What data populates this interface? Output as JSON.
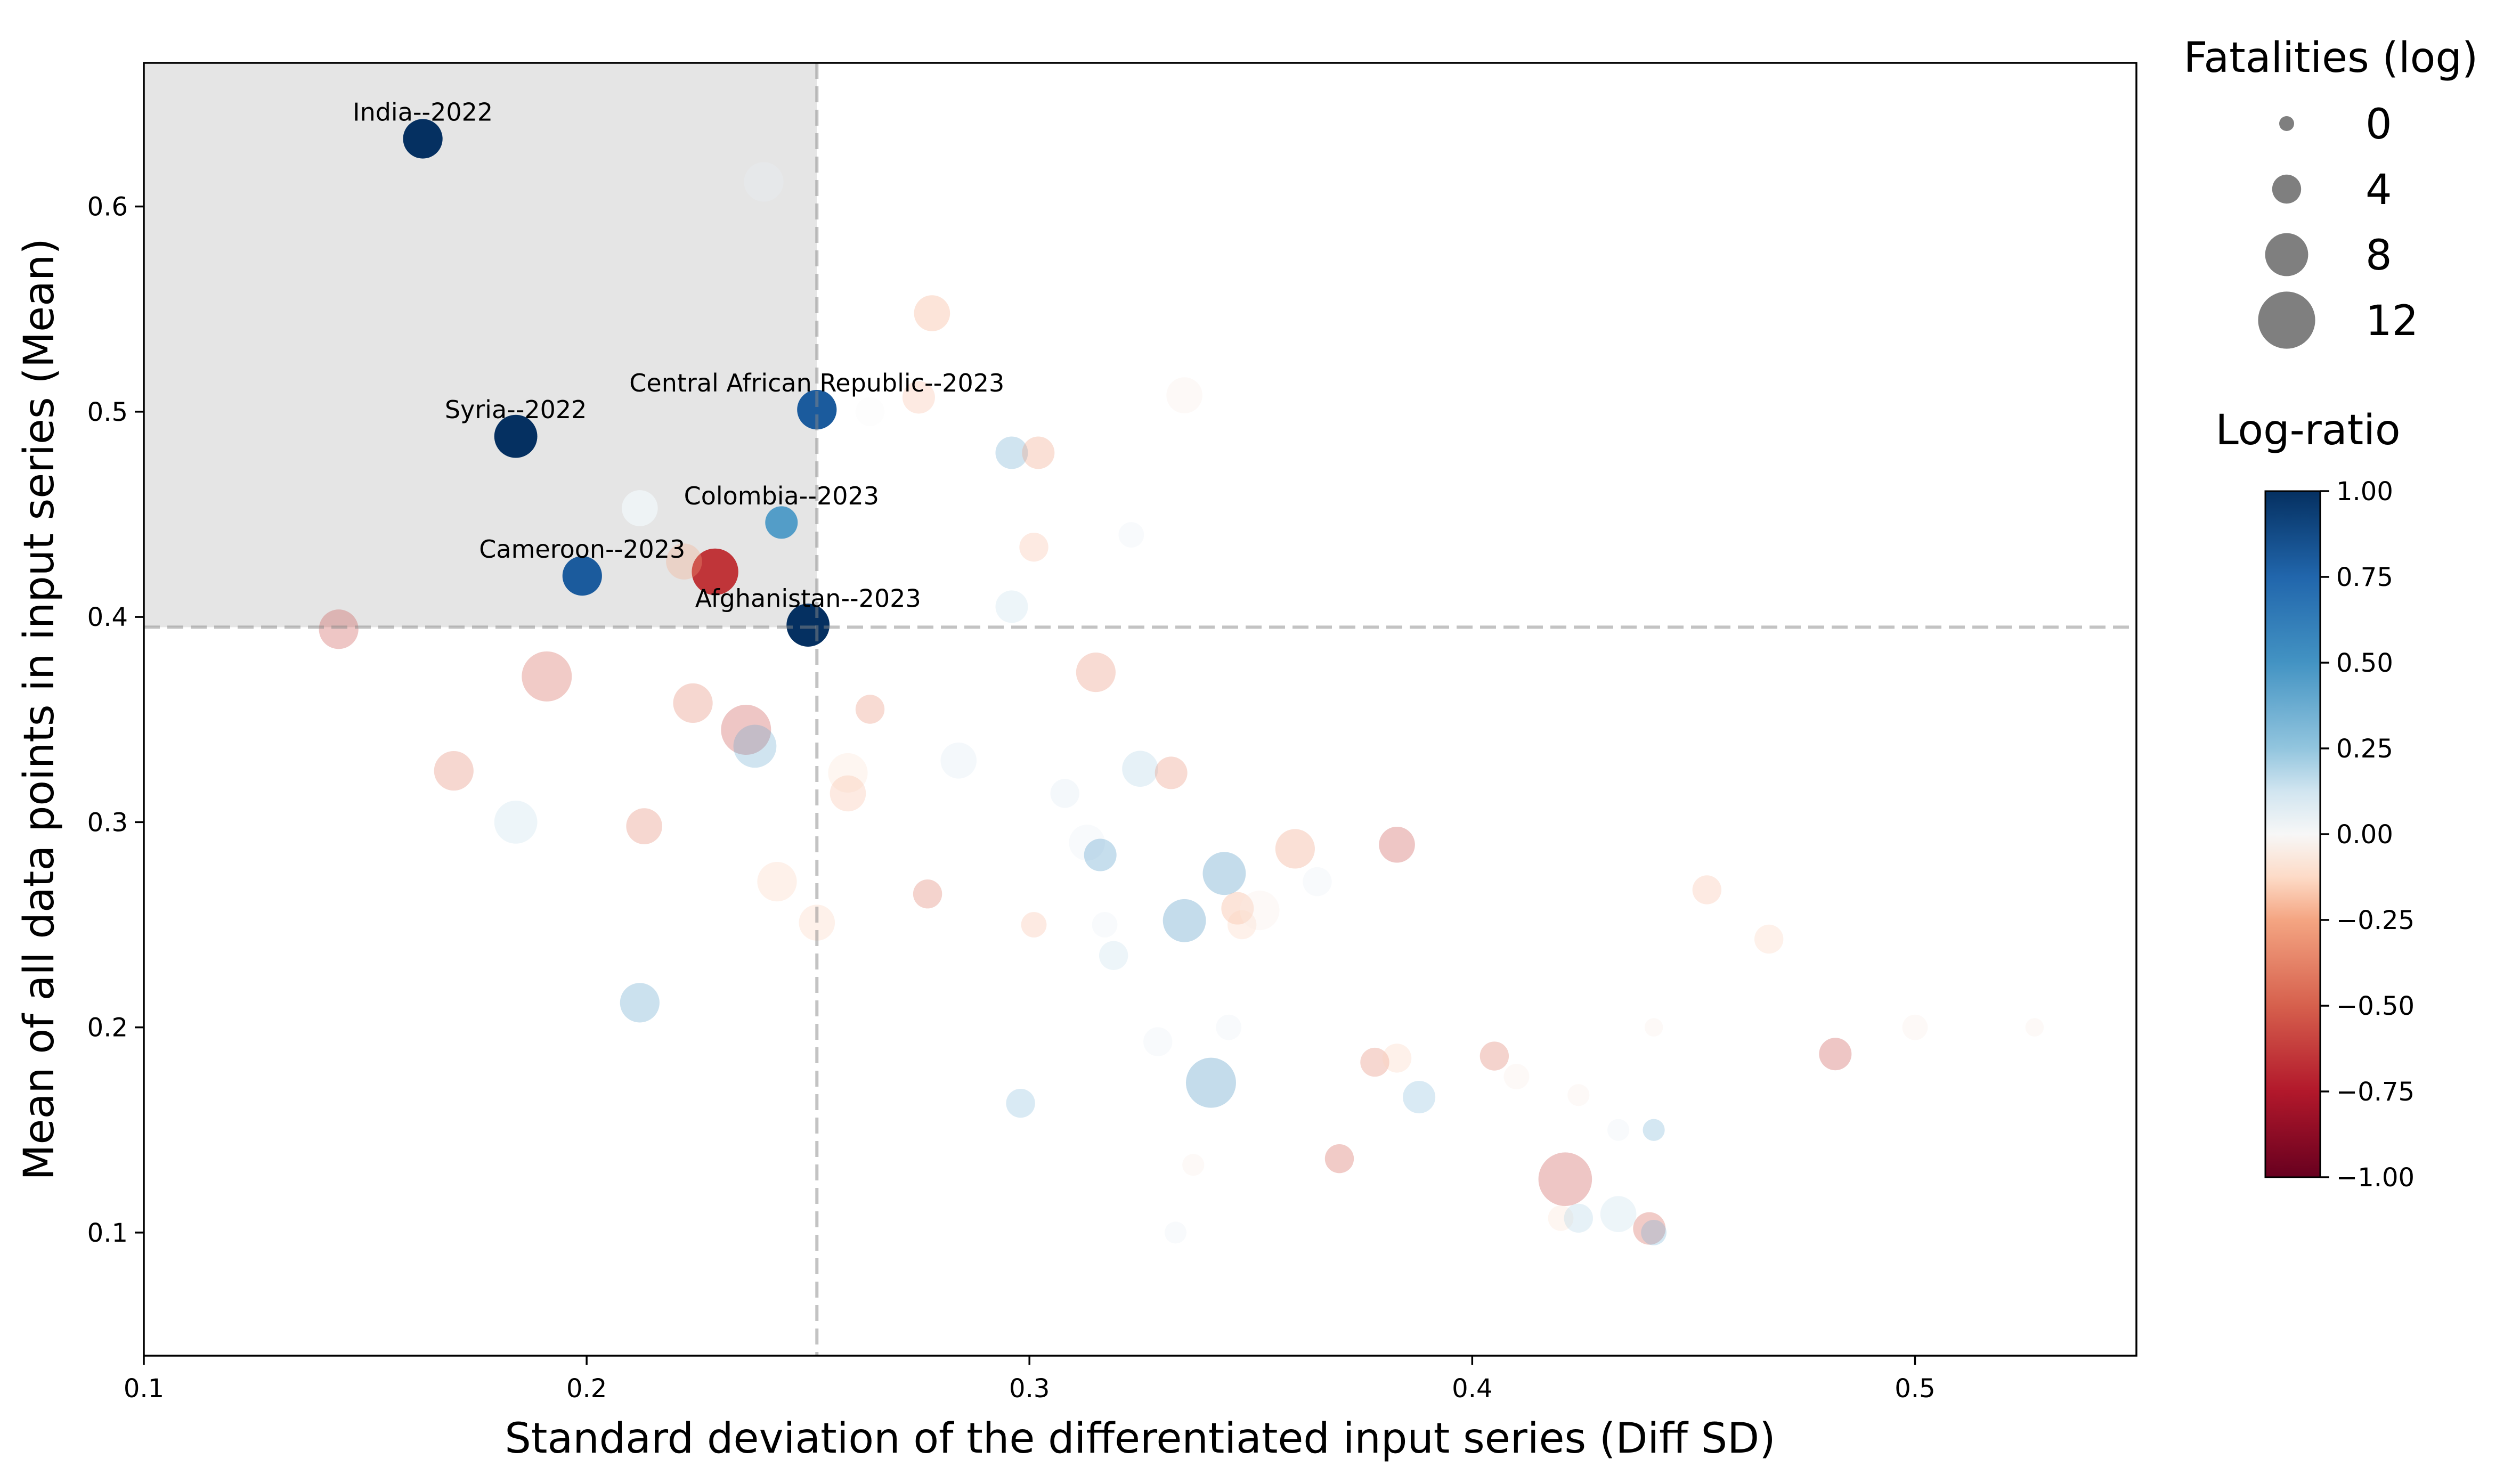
{
  "chart_data": {
    "type": "scatter",
    "xlabel": "Standard deviation of the differentiated input series (Diff SD)",
    "ylabel": "Mean of all data points in input series (Mean)",
    "xlim": [
      0.1,
      0.55
    ],
    "ylim": [
      0.04,
      0.67
    ],
    "x_ticks": [
      "0.1",
      "0.2",
      "0.3",
      "0.4",
      "0.5"
    ],
    "y_ticks": [
      "0.1",
      "0.2",
      "0.3",
      "0.4",
      "0.5",
      "0.6"
    ],
    "threshold_x": 0.252,
    "threshold_y": 0.395,
    "size_legend": {
      "title": "Fatalities (log)",
      "entries": [
        {
          "label": "0",
          "value": 0
        },
        {
          "label": "4",
          "value": 4
        },
        {
          "label": "8",
          "value": 8
        },
        {
          "label": "12",
          "value": 12
        }
      ]
    },
    "colorbar": {
      "title": "Log-ratio",
      "min": -1.0,
      "max": 1.0,
      "ticks": [
        "1.00",
        "0.75",
        "0.50",
        "0.25",
        "0.00",
        "−0.25",
        "−0.50",
        "−0.75",
        "−1.00"
      ],
      "tick_values": [
        1.0,
        0.75,
        0.5,
        0.25,
        0.0,
        -0.25,
        -0.5,
        -0.75,
        -1.0
      ]
    },
    "annotations": [
      {
        "text": "India--2022",
        "x": 0.163,
        "y": 0.633
      },
      {
        "text": "Syria--2022",
        "x": 0.184,
        "y": 0.488
      },
      {
        "text": "Central African Republic--2023",
        "x": 0.252,
        "y": 0.501
      },
      {
        "text": "Colombia--2023",
        "x": 0.244,
        "y": 0.446
      },
      {
        "text": "Cameroon--2023",
        "x": 0.199,
        "y": 0.42
      },
      {
        "text": "Afghanistan--2023",
        "x": 0.25,
        "y": 0.396
      }
    ],
    "points": [
      {
        "x": 0.163,
        "y": 0.633,
        "size": 7,
        "ratio": 1.0,
        "highlight": true
      },
      {
        "x": 0.184,
        "y": 0.488,
        "size": 8,
        "ratio": 1.0,
        "highlight": true
      },
      {
        "x": 0.252,
        "y": 0.501,
        "size": 7,
        "ratio": 0.8,
        "highlight": true
      },
      {
        "x": 0.244,
        "y": 0.446,
        "size": 5,
        "ratio": 0.45,
        "highlight": true
      },
      {
        "x": 0.199,
        "y": 0.42,
        "size": 7,
        "ratio": 0.8,
        "highlight": true
      },
      {
        "x": 0.25,
        "y": 0.396,
        "size": 8,
        "ratio": 1.0,
        "highlight": true
      },
      {
        "x": 0.229,
        "y": 0.422,
        "size": 9,
        "ratio": -0.65,
        "highlight": true
      },
      {
        "x": 0.222,
        "y": 0.427,
        "size": 6,
        "ratio": -0.25,
        "highlight": false
      },
      {
        "x": 0.212,
        "y": 0.453,
        "size": 6,
        "ratio": 0.03,
        "highlight": true
      },
      {
        "x": 0.24,
        "y": 0.612,
        "size": 7,
        "ratio": 0.05,
        "highlight": false
      },
      {
        "x": 0.144,
        "y": 0.394,
        "size": 7,
        "ratio": -0.6,
        "highlight": false
      },
      {
        "x": 0.191,
        "y": 0.371,
        "size": 10,
        "ratio": -0.55,
        "highlight": false
      },
      {
        "x": 0.224,
        "y": 0.358,
        "size": 7,
        "ratio": -0.4,
        "highlight": false
      },
      {
        "x": 0.236,
        "y": 0.345,
        "size": 10,
        "ratio": -0.6,
        "highlight": false
      },
      {
        "x": 0.238,
        "y": 0.337,
        "size": 8,
        "ratio": 0.4,
        "highlight": false
      },
      {
        "x": 0.17,
        "y": 0.325,
        "size": 7,
        "ratio": -0.4,
        "highlight": false
      },
      {
        "x": 0.184,
        "y": 0.3,
        "size": 8,
        "ratio": 0.15,
        "highlight": false
      },
      {
        "x": 0.213,
        "y": 0.298,
        "size": 6,
        "ratio": -0.4,
        "highlight": false
      },
      {
        "x": 0.212,
        "y": 0.212,
        "size": 7,
        "ratio": 0.45,
        "highlight": false
      },
      {
        "x": 0.243,
        "y": 0.271,
        "size": 7,
        "ratio": -0.15,
        "highlight": false
      },
      {
        "x": 0.252,
        "y": 0.251,
        "size": 6,
        "ratio": -0.15,
        "highlight": false
      },
      {
        "x": 0.259,
        "y": 0.324,
        "size": 7,
        "ratio": -0.1,
        "highlight": false
      },
      {
        "x": 0.259,
        "y": 0.314,
        "size": 6,
        "ratio": -0.2,
        "highlight": false
      },
      {
        "x": 0.264,
        "y": 0.355,
        "size": 4,
        "ratio": -0.35,
        "highlight": false
      },
      {
        "x": 0.264,
        "y": 0.5,
        "size": 4,
        "ratio": 0.0,
        "highlight": false
      },
      {
        "x": 0.275,
        "y": 0.507,
        "size": 5,
        "ratio": -0.2,
        "highlight": false
      },
      {
        "x": 0.278,
        "y": 0.548,
        "size": 6,
        "ratio": -0.25,
        "highlight": false
      },
      {
        "x": 0.277,
        "y": 0.265,
        "size": 4,
        "ratio": -0.45,
        "highlight": false
      },
      {
        "x": 0.284,
        "y": 0.33,
        "size": 6,
        "ratio": 0.1,
        "highlight": false
      },
      {
        "x": 0.296,
        "y": 0.48,
        "size": 5,
        "ratio": 0.4,
        "highlight": false
      },
      {
        "x": 0.302,
        "y": 0.48,
        "size": 5,
        "ratio": -0.3,
        "highlight": false
      },
      {
        "x": 0.301,
        "y": 0.434,
        "size": 4,
        "ratio": -0.2,
        "highlight": false
      },
      {
        "x": 0.296,
        "y": 0.405,
        "size": 5,
        "ratio": 0.15,
        "highlight": false
      },
      {
        "x": 0.301,
        "y": 0.25,
        "size": 3,
        "ratio": -0.2,
        "highlight": false
      },
      {
        "x": 0.298,
        "y": 0.163,
        "size": 4,
        "ratio": 0.3,
        "highlight": false
      },
      {
        "x": 0.308,
        "y": 0.314,
        "size": 4,
        "ratio": 0.1,
        "highlight": false
      },
      {
        "x": 0.313,
        "y": 0.29,
        "size": 6,
        "ratio": 0.05,
        "highlight": false
      },
      {
        "x": 0.315,
        "y": 0.373,
        "size": 7,
        "ratio": -0.35,
        "highlight": false
      },
      {
        "x": 0.316,
        "y": 0.284,
        "size": 5,
        "ratio": 0.5,
        "highlight": false
      },
      {
        "x": 0.317,
        "y": 0.25,
        "size": 3,
        "ratio": 0.05,
        "highlight": false
      },
      {
        "x": 0.319,
        "y": 0.235,
        "size": 4,
        "ratio": 0.15,
        "highlight": false
      },
      {
        "x": 0.323,
        "y": 0.44,
        "size": 3,
        "ratio": 0.05,
        "highlight": false
      },
      {
        "x": 0.325,
        "y": 0.326,
        "size": 6,
        "ratio": 0.2,
        "highlight": false
      },
      {
        "x": 0.329,
        "y": 0.193,
        "size": 4,
        "ratio": 0.05,
        "highlight": false
      },
      {
        "x": 0.332,
        "y": 0.324,
        "size": 5,
        "ratio": -0.35,
        "highlight": false
      },
      {
        "x": 0.333,
        "y": 0.1,
        "size": 2,
        "ratio": 0.05,
        "highlight": false
      },
      {
        "x": 0.335,
        "y": 0.508,
        "size": 6,
        "ratio": -0.05,
        "highlight": false
      },
      {
        "x": 0.335,
        "y": 0.252,
        "size": 8,
        "ratio": 0.55,
        "highlight": false
      },
      {
        "x": 0.337,
        "y": 0.133,
        "size": 2,
        "ratio": -0.05,
        "highlight": false
      },
      {
        "x": 0.341,
        "y": 0.173,
        "size": 10,
        "ratio": 0.55,
        "highlight": false
      },
      {
        "x": 0.344,
        "y": 0.275,
        "size": 8,
        "ratio": 0.55,
        "highlight": false
      },
      {
        "x": 0.345,
        "y": 0.2,
        "size": 3,
        "ratio": 0.05,
        "highlight": false
      },
      {
        "x": 0.347,
        "y": 0.258,
        "size": 5,
        "ratio": -0.25,
        "highlight": false
      },
      {
        "x": 0.348,
        "y": 0.25,
        "size": 4,
        "ratio": -0.15,
        "highlight": false
      },
      {
        "x": 0.352,
        "y": 0.257,
        "size": 7,
        "ratio": -0.05,
        "highlight": false
      },
      {
        "x": 0.36,
        "y": 0.287,
        "size": 7,
        "ratio": -0.3,
        "highlight": false
      },
      {
        "x": 0.365,
        "y": 0.271,
        "size": 4,
        "ratio": 0.05,
        "highlight": false
      },
      {
        "x": 0.37,
        "y": 0.136,
        "size": 4,
        "ratio": -0.55,
        "highlight": false
      },
      {
        "x": 0.378,
        "y": 0.183,
        "size": 4,
        "ratio": -0.4,
        "highlight": false
      },
      {
        "x": 0.383,
        "y": 0.185,
        "size": 4,
        "ratio": -0.15,
        "highlight": false
      },
      {
        "x": 0.383,
        "y": 0.289,
        "size": 6,
        "ratio": -0.6,
        "highlight": false
      },
      {
        "x": 0.388,
        "y": 0.166,
        "size": 5,
        "ratio": 0.3,
        "highlight": false
      },
      {
        "x": 0.405,
        "y": 0.186,
        "size": 4,
        "ratio": -0.45,
        "highlight": false
      },
      {
        "x": 0.41,
        "y": 0.176,
        "size": 3,
        "ratio": -0.05,
        "highlight": false
      },
      {
        "x": 0.42,
        "y": 0.107,
        "size": 3,
        "ratio": -0.1,
        "highlight": false
      },
      {
        "x": 0.421,
        "y": 0.126,
        "size": 11,
        "ratio": -0.6,
        "highlight": false
      },
      {
        "x": 0.424,
        "y": 0.107,
        "size": 4,
        "ratio": 0.2,
        "highlight": false
      },
      {
        "x": 0.424,
        "y": 0.167,
        "size": 2,
        "ratio": -0.05,
        "highlight": false
      },
      {
        "x": 0.433,
        "y": 0.109,
        "size": 6,
        "ratio": 0.15,
        "highlight": false
      },
      {
        "x": 0.433,
        "y": 0.15,
        "size": 2,
        "ratio": 0.05,
        "highlight": false
      },
      {
        "x": 0.44,
        "y": 0.102,
        "size": 5,
        "ratio": -0.55,
        "highlight": false
      },
      {
        "x": 0.441,
        "y": 0.1,
        "size": 3,
        "ratio": 0.35,
        "highlight": false
      },
      {
        "x": 0.441,
        "y": 0.15,
        "size": 2,
        "ratio": 0.35,
        "highlight": false
      },
      {
        "x": 0.441,
        "y": 0.2,
        "size": 1,
        "ratio": -0.05,
        "highlight": false
      },
      {
        "x": 0.453,
        "y": 0.267,
        "size": 4,
        "ratio": -0.2,
        "highlight": false
      },
      {
        "x": 0.467,
        "y": 0.243,
        "size": 4,
        "ratio": -0.15,
        "highlight": false
      },
      {
        "x": 0.482,
        "y": 0.187,
        "size": 5,
        "ratio": -0.6,
        "highlight": false
      },
      {
        "x": 0.5,
        "y": 0.2,
        "size": 3,
        "ratio": -0.05,
        "highlight": false
      },
      {
        "x": 0.527,
        "y": 0.2,
        "size": 1,
        "ratio": -0.05,
        "highlight": false
      }
    ]
  }
}
